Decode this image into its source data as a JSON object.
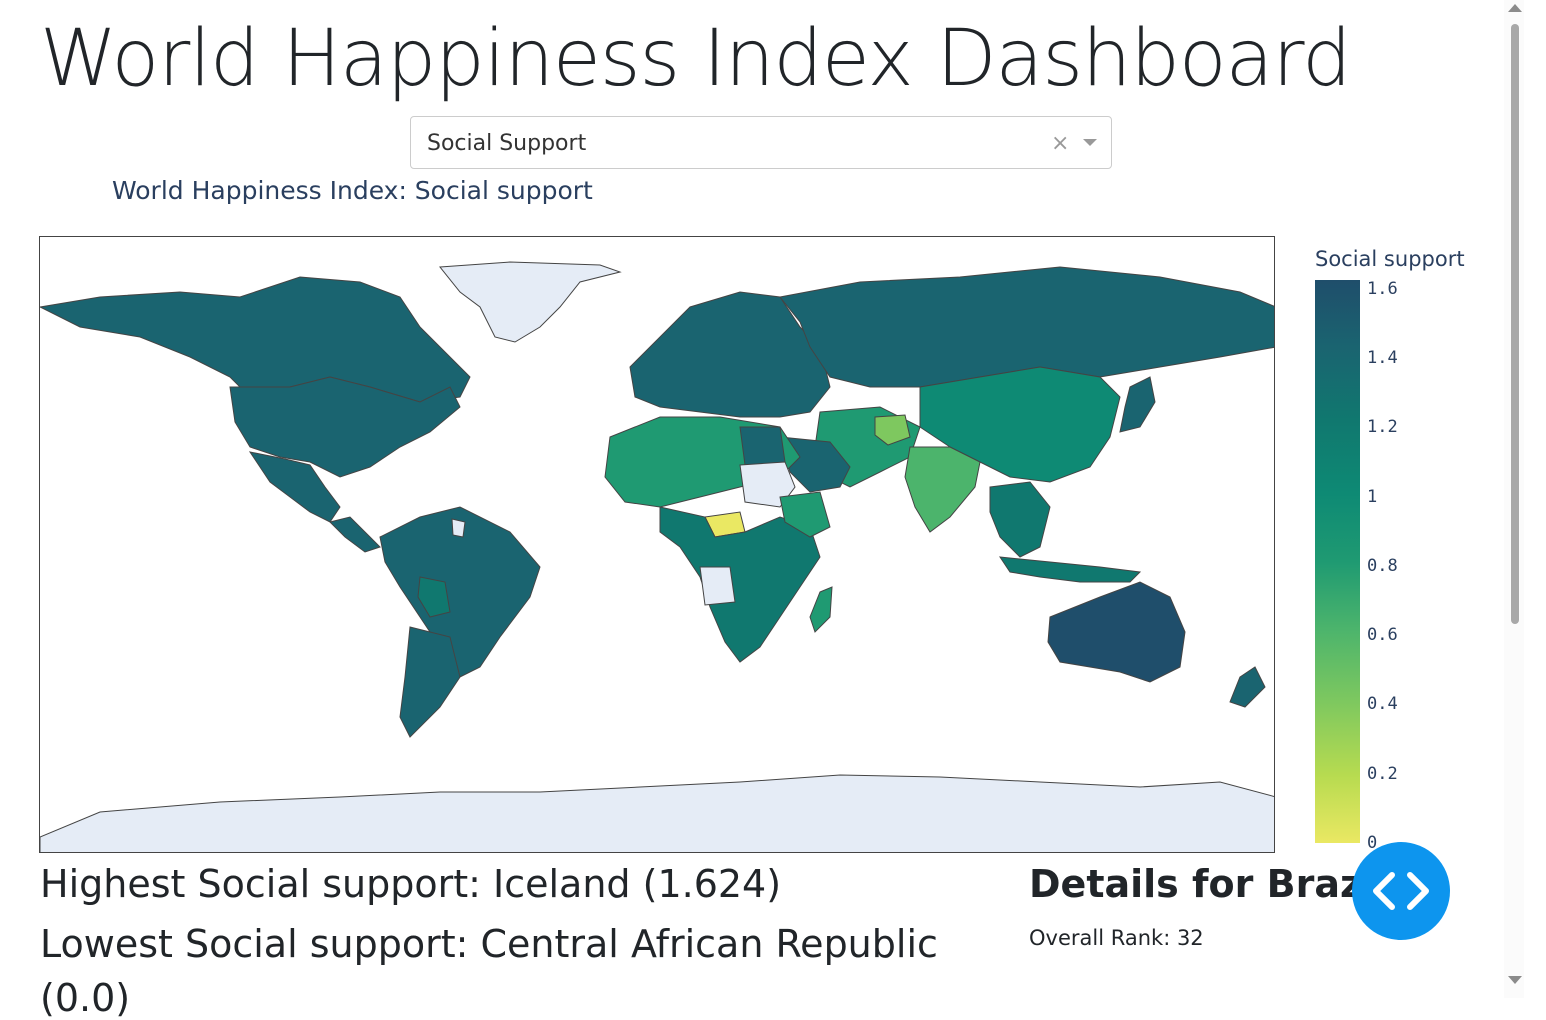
{
  "header": {
    "title": "World Happiness Index Dashboard"
  },
  "dropdown": {
    "selected": "Social Support",
    "clear_icon": "×"
  },
  "chart": {
    "title": "World Happiness Index: Social support",
    "colorbar_title": "Social support",
    "colorbar_ticks": [
      "1.6",
      "1.4",
      "1.2",
      "1",
      "0.8",
      "0.6",
      "0.4",
      "0.2",
      "0"
    ],
    "colors": {
      "high": "#1f4e6b",
      "mid": "#1f9a72",
      "low": "#eae863",
      "missing": "#e5ecf6"
    }
  },
  "chart_data": {
    "type": "choropleth",
    "title": "World Happiness Index: Social support",
    "metric": "Social support",
    "range": [
      0,
      1.6
    ],
    "highlighted": [
      {
        "country": "Iceland",
        "value": 1.624
      },
      {
        "country": "Central African Republic",
        "value": 0.0
      }
    ]
  },
  "stats": {
    "highest": "Highest Social support: Iceland (1.624)",
    "lowest": "Lowest Social support: Central African Republic",
    "lowest_value_line": "(0.0)"
  },
  "details": {
    "title": "Details for Brazil",
    "rank": "Overall Rank: 32"
  },
  "toggle": {
    "icon": "code-icon"
  }
}
